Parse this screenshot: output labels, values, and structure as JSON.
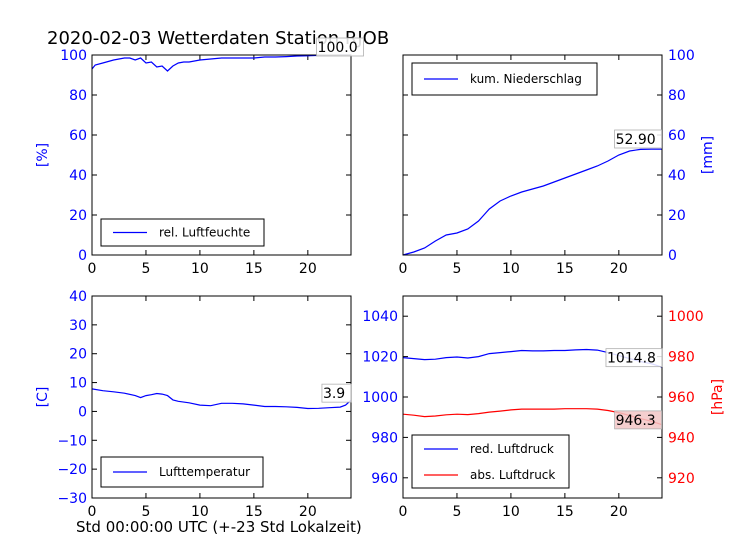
{
  "figure": {
    "title": "2020-02-03 Wetterdaten Station RJOB",
    "xlabel": "Std 00:00:00 UTC (+-23 Std Lokalzeit)"
  },
  "chart_data": [
    {
      "id": "humidity",
      "type": "line",
      "xlim": [
        0,
        24
      ],
      "ylim": [
        0,
        100
      ],
      "xticks": [
        0,
        5,
        10,
        15,
        20
      ],
      "yticks": [
        0,
        20,
        40,
        60,
        80,
        100
      ],
      "ylabel": "[%]",
      "ylabel_color": "#0000ff",
      "ytick_color": "#0000ff",
      "ylabel_side": "left",
      "legend": {
        "position": "lower-left"
      },
      "series": [
        {
          "name": "rel. Luftfeuchte",
          "color": "#0000ff",
          "x": [
            0,
            0.3,
            1,
            2,
            3,
            3.5,
            4,
            4.5,
            5,
            5.5,
            6,
            6.5,
            7,
            7.5,
            8,
            8.5,
            9,
            10,
            11,
            12,
            13,
            14,
            15,
            16,
            17,
            18,
            19,
            20,
            21,
            22,
            23,
            24
          ],
          "y": [
            93,
            95,
            96,
            97.5,
            98.5,
            98.5,
            97.5,
            98.5,
            96,
            96.5,
            94,
            94.5,
            92,
            94.5,
            96,
            96.5,
            96.5,
            97.5,
            98,
            98.5,
            98.5,
            98.5,
            98.5,
            99,
            99,
            99.2,
            99.5,
            99.6,
            99.8,
            99.9,
            100,
            100
          ]
        }
      ],
      "annotation": {
        "text": "100.0",
        "x": 20.9,
        "y": 101.5
      }
    },
    {
      "id": "precip",
      "type": "line",
      "xlim": [
        0,
        24
      ],
      "ylim": [
        0,
        100
      ],
      "xticks": [
        0,
        5,
        10,
        15,
        20
      ],
      "yticks": [
        0,
        20,
        40,
        60,
        80,
        100
      ],
      "ylabel": "[mm]",
      "ylabel_color": "#0000ff",
      "ytick_color": "#0000ff",
      "ylabel_side": "right",
      "legend": {
        "position": "upper-left"
      },
      "series": [
        {
          "name": "kum. Niederschlag",
          "color": "#0000ff",
          "x": [
            0,
            1,
            2,
            3,
            4,
            5,
            6,
            7,
            7.5,
            8,
            9,
            10,
            11,
            12,
            13,
            14,
            15,
            16,
            17,
            18,
            19,
            20,
            21,
            22,
            23,
            24
          ],
          "y": [
            0,
            1.5,
            3.5,
            7,
            10,
            11,
            13,
            17,
            20,
            23,
            27,
            29.5,
            31.5,
            33,
            34.5,
            36.5,
            38.5,
            40.5,
            42.5,
            44.5,
            47,
            50,
            52,
            52.8,
            52.9,
            52.9
          ]
        }
      ],
      "annotation": {
        "text": "52.90",
        "x": 19.7,
        "y": 55.5
      }
    },
    {
      "id": "temperature",
      "type": "line",
      "xlim": [
        0,
        24
      ],
      "ylim": [
        -30,
        40
      ],
      "xticks": [
        0,
        5,
        10,
        15,
        20
      ],
      "yticks": [
        -30,
        -20,
        -10,
        0,
        10,
        20,
        30,
        40
      ],
      "ylabel": "[C]",
      "ylabel_color": "#0000ff",
      "ytick_color": "#0000ff",
      "ylabel_side": "left",
      "legend": {
        "position": "lower-left"
      },
      "series": [
        {
          "name": "Lufttemperatur",
          "color": "#0000ff",
          "x": [
            0,
            1,
            2,
            3,
            4,
            4.5,
            5,
            5.5,
            6,
            6.5,
            7,
            7.5,
            8,
            9,
            10,
            11,
            12,
            13,
            14,
            15,
            16,
            17,
            18,
            19,
            20,
            21,
            22,
            23,
            23.5,
            24
          ],
          "y": [
            7.8,
            7.2,
            6.8,
            6.3,
            5.5,
            4.8,
            5.5,
            5.8,
            6.2,
            6,
            5.5,
            4,
            3.5,
            3,
            2.2,
            2,
            2.8,
            2.8,
            2.6,
            2.2,
            1.7,
            1.7,
            1.6,
            1.4,
            1,
            1.1,
            1.3,
            1.5,
            2.2,
            3.9
          ]
        }
      ],
      "annotation": {
        "text": "3.9",
        "x": 21.4,
        "y": 4.6
      }
    },
    {
      "id": "pressure",
      "type": "line",
      "xlim": [
        0,
        24
      ],
      "ylim": [
        950,
        1050
      ],
      "xticks": [
        0,
        5,
        10,
        15,
        20
      ],
      "yticks": [
        960,
        980,
        1000,
        1020,
        1040
      ],
      "ylabel_left": "",
      "ytick_color": "#0000ff",
      "secondary_y": {
        "label": "[hPa]",
        "color": "#ff0000",
        "ylim": [
          910,
          1010
        ],
        "yticks": [
          920,
          940,
          960,
          980,
          1000
        ]
      },
      "legend": {
        "position": "lower-left"
      },
      "series": [
        {
          "name": "red. Luftdruck",
          "color": "#0000ff",
          "axis": "left",
          "x": [
            0,
            1,
            2,
            3,
            4,
            5,
            6,
            7,
            8,
            9,
            10,
            11,
            12,
            13,
            14,
            15,
            16,
            17,
            18,
            19,
            20,
            21,
            22,
            23,
            24
          ],
          "y": [
            1019.5,
            1019,
            1018.5,
            1018.7,
            1019.5,
            1019.8,
            1019.3,
            1020,
            1021.5,
            1022,
            1022.5,
            1023,
            1022.8,
            1022.8,
            1023,
            1023,
            1023.3,
            1023.5,
            1023.2,
            1022,
            1020.5,
            1019,
            1017.5,
            1016.5,
            1014.8
          ]
        },
        {
          "name": "abs. Luftdruck",
          "color": "#ff0000",
          "axis": "right",
          "x": [
            0,
            1,
            2,
            3,
            4,
            5,
            6,
            7,
            8,
            9,
            10,
            11,
            12,
            13,
            14,
            15,
            16,
            17,
            18,
            19,
            20,
            21,
            22,
            23,
            24
          ],
          "y": [
            951.5,
            951,
            950.3,
            950.6,
            951.2,
            951.5,
            951.3,
            951.8,
            952.5,
            953,
            953.6,
            954,
            954,
            954,
            954,
            954.2,
            954.2,
            954.2,
            954,
            953.3,
            952.3,
            950.8,
            949.3,
            948,
            946.3
          ]
        }
      ],
      "annotations": [
        {
          "text": "1014.8",
          "x": 18.9,
          "y": 1017,
          "axis": "left",
          "bg": "#ffffff"
        },
        {
          "text": "946.3",
          "x": 19.7,
          "y": 946.2,
          "axis": "right",
          "bg": "#f2c6c6"
        }
      ]
    }
  ],
  "colors": {
    "axis": "#000000",
    "primary": "#0000ff",
    "secondary": "#ff0000",
    "legend_border": "#000000"
  }
}
